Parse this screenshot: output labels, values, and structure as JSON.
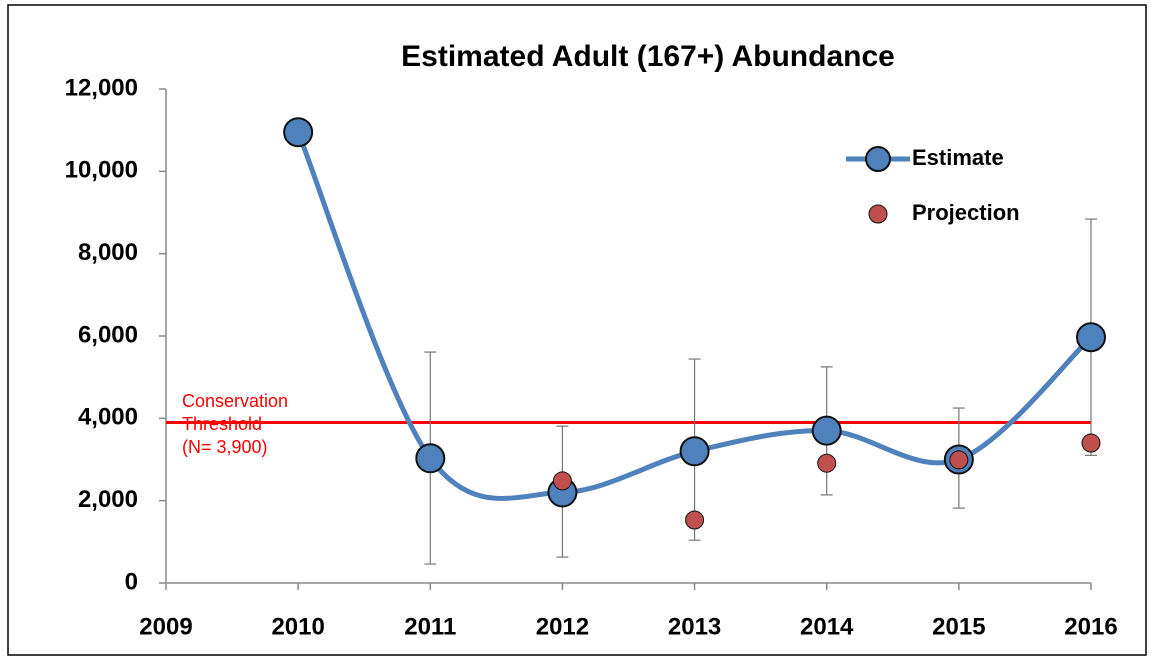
{
  "chart_data": {
    "type": "line",
    "title": "Estimated Adult (167+) Abundance",
    "x": [
      2010,
      2011,
      2012,
      2013,
      2014,
      2015,
      2016
    ],
    "series": [
      {
        "name": "Estimate",
        "color": "#4f81bd",
        "smooth": true,
        "line": true,
        "values": [
          10950,
          3030,
          2200,
          3200,
          3700,
          3000,
          5970
        ],
        "error_lower": [
          null,
          460,
          630,
          1040,
          2140,
          1820,
          3100
        ],
        "error_upper": [
          null,
          5610,
          3810,
          5440,
          5250,
          4250,
          8840
        ]
      },
      {
        "name": "Projection",
        "color": "#c0504d",
        "line": false,
        "values": [
          null,
          null,
          2480,
          1530,
          2910,
          2990,
          3400
        ]
      }
    ],
    "threshold": {
      "value": 3900,
      "color": "#ff0000",
      "label": [
        "Conservation",
        "Threshold",
        "(N= 3,900)"
      ]
    },
    "xlim": [
      2009,
      2016
    ],
    "xticks": [
      2009,
      2010,
      2011,
      2012,
      2013,
      2014,
      2015,
      2016
    ],
    "ylim": [
      0,
      12000
    ],
    "yticks": [
      {
        "value": 0,
        "label": "0"
      },
      {
        "value": 2000,
        "label": "2,000"
      },
      {
        "value": 4000,
        "label": "4,000"
      },
      {
        "value": 6000,
        "label": "6,000"
      },
      {
        "value": 8000,
        "label": "8,000"
      },
      {
        "value": 10000,
        "label": "10,000"
      },
      {
        "value": 12000,
        "label": "12,000"
      }
    ],
    "grid": false,
    "legend": "upper right"
  }
}
